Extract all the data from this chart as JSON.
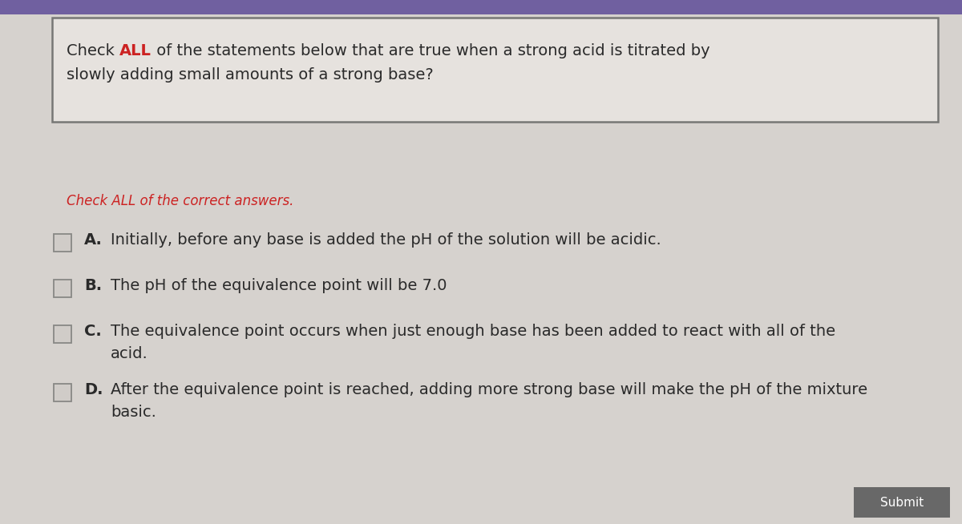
{
  "bg_color": "#d6d2ce",
  "title_box_bg": "#e6e2de",
  "title_box_border": "#777775",
  "highlight_color": "#cc2222",
  "normal_text_color": "#2a2a2a",
  "subtitle_color": "#cc2222",
  "subtitle_text": "Check ALL of the correct answers.",
  "title_prefix": "Check ",
  "title_highlight": "ALL",
  "title_rest_line1": " of the statements below that are true when a strong acid is titrated by",
  "title_line2": "slowly adding small amounts of a strong base?",
  "options": [
    {
      "label": "A.",
      "line1": "Initially, before any base is added the pH of the solution will be acidic.",
      "line2": ""
    },
    {
      "label": "B.",
      "line1": "The pH of the equivalence point will be 7.0",
      "line2": ""
    },
    {
      "label": "C.",
      "line1": "The equivalence point occurs when just enough base has been added to react with all of the",
      "line2": "acid."
    },
    {
      "label": "D.",
      "line1": "After the equivalence point is reached, adding more strong base will make the pH of the mixture",
      "line2": "basic."
    }
  ],
  "submit_btn_color": "#686868",
  "submit_btn_text": "Submit",
  "submit_text_color": "#ffffff",
  "top_bar_color": "#7060a0",
  "font_size_title": 14,
  "font_size_subtitle": 12,
  "font_size_options": 14,
  "checkbox_color": "#d0ccc8",
  "checkbox_border": "#888885"
}
